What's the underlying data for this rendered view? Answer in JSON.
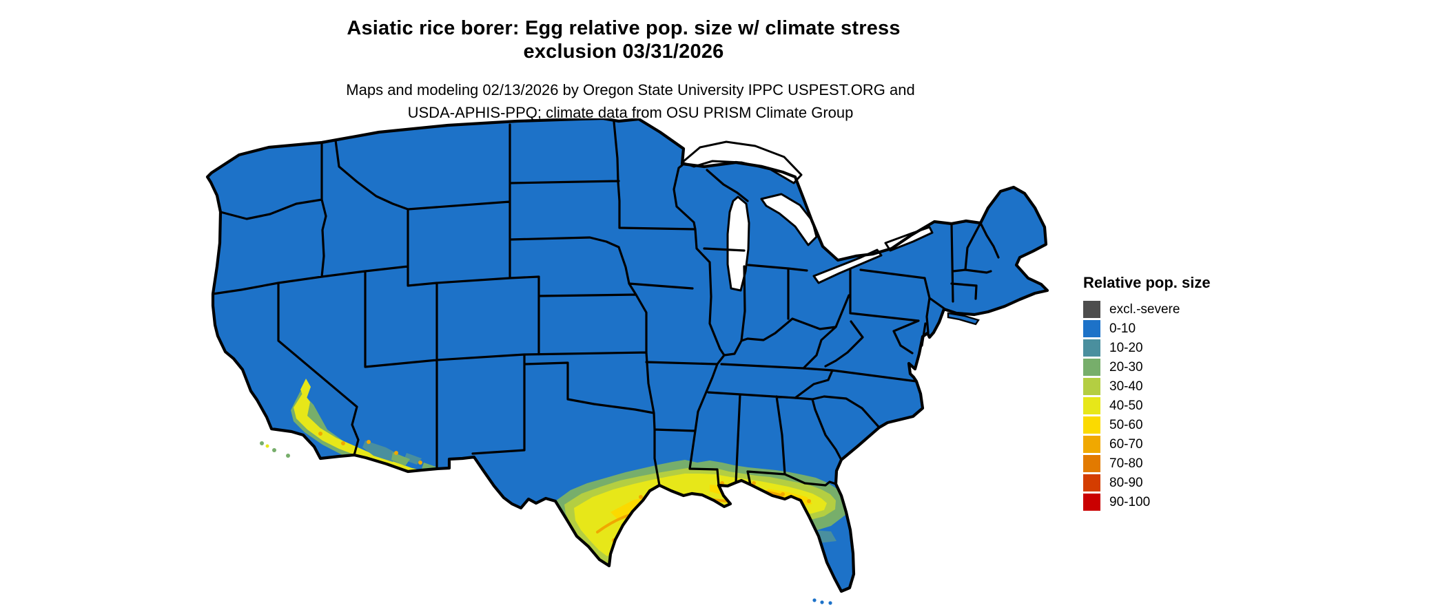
{
  "title": {
    "line1": "Asiatic rice borer: Egg relative pop. size w/ climate stress",
    "line2": "exclusion 03/31/2026"
  },
  "subtitle": {
    "line1": "Maps and modeling 02/13/2026 by Oregon State University IPPC USPEST.ORG and",
    "line2": "USDA-APHIS-PPQ; climate data from OSU PRISM Climate Group"
  },
  "legend": {
    "title": "Relative pop. size",
    "entries": [
      {
        "key": "excl",
        "label": "excl.-severe",
        "color": "#4d4d4d"
      },
      {
        "key": "b0_10",
        "label": "0-10",
        "color": "#1d72c8"
      },
      {
        "key": "b10_20",
        "label": "10-20",
        "color": "#4a8f9e"
      },
      {
        "key": "b20_30",
        "label": "20-30",
        "color": "#77ae6b"
      },
      {
        "key": "b30_40",
        "label": "30-40",
        "color": "#b4ce42"
      },
      {
        "key": "b40_50",
        "label": "40-50",
        "color": "#e7e719"
      },
      {
        "key": "b50_60",
        "label": "50-60",
        "color": "#fbda00"
      },
      {
        "key": "b60_70",
        "label": "60-70",
        "color": "#f0a800"
      },
      {
        "key": "b70_80",
        "label": "70-80",
        "color": "#e27a00"
      },
      {
        "key": "b80_90",
        "label": "80-90",
        "color": "#d43d00"
      },
      {
        "key": "b90_100",
        "label": "90-100",
        "color": "#ca0000"
      }
    ]
  },
  "map": {
    "region": "contiguous United States",
    "type": "raster choropleth of relative population size",
    "border_color": "#000000",
    "water_and_background": "#ffffff",
    "dominant_class": "0-10",
    "colored_areas": [
      "southern California coast and southwestern Arizona: 30-60 with 60-70 specks",
      "Gulf Coast band from central Texas through Louisiana, Mississippi, Alabama, southern Georgia and north Florida: 20-60 with 60-70 ribbons",
      "south Texas tip and central Florida peninsula grade back through 10-20 to 0-10"
    ]
  }
}
